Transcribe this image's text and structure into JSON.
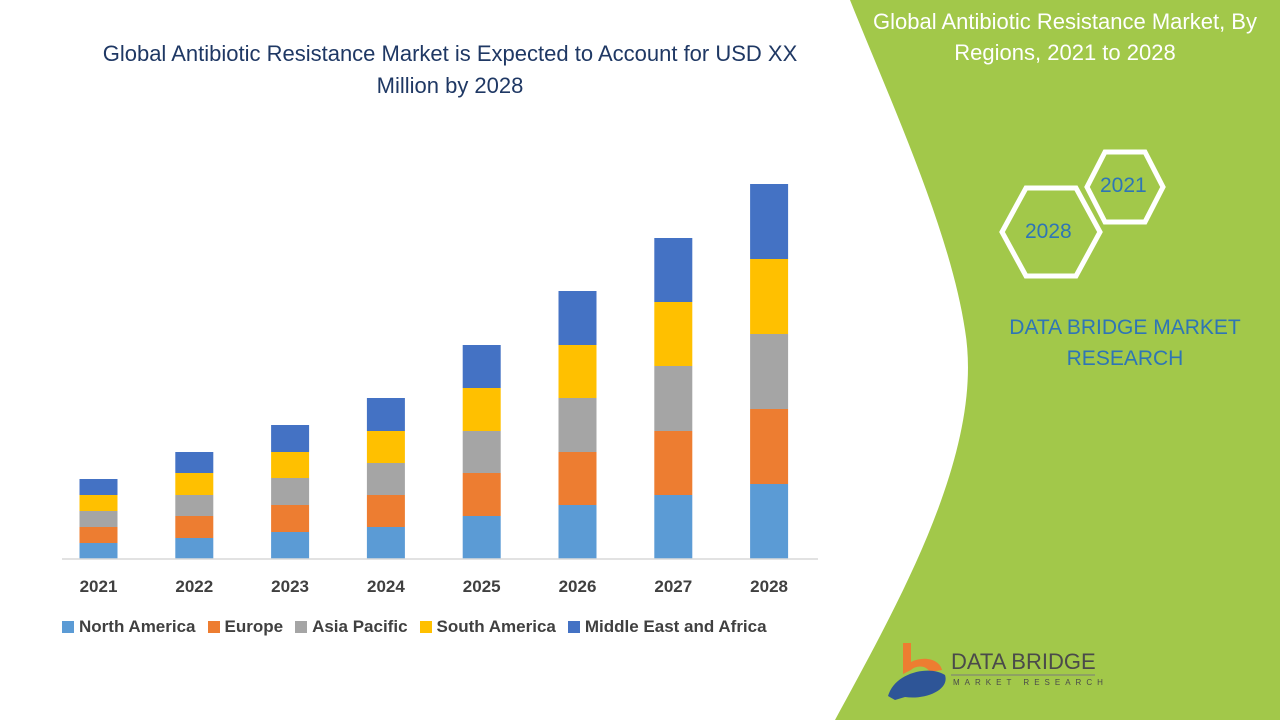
{
  "title": "Global Antibiotic Resistance Market is Expected to Account for USD XX Million by 2028",
  "side_panel": {
    "title": "Global Antibiotic Resistance Market, By Regions, 2021 to 2028",
    "hex_labels": [
      "2021",
      "2028"
    ],
    "brand": "DATA BRIDGE MARKET RESEARCH",
    "logo_text": "DATA BRIDGE",
    "logo_sub": "MARKET RESEARCH",
    "panel_color": "#a2c84a"
  },
  "chart_data": {
    "type": "bar",
    "stacked": true,
    "categories": [
      "2021",
      "2022",
      "2023",
      "2024",
      "2025",
      "2026",
      "2027",
      "2028"
    ],
    "series": [
      {
        "name": "North America",
        "color": "#5b9bd5",
        "values": [
          16,
          21,
          27,
          32,
          43,
          54,
          64,
          75
        ]
      },
      {
        "name": "Europe",
        "color": "#ed7d31",
        "values": [
          16,
          22,
          27,
          32,
          43,
          53,
          64,
          75
        ]
      },
      {
        "name": "Asia Pacific",
        "color": "#a5a5a5",
        "values": [
          16,
          21,
          27,
          32,
          42,
          54,
          65,
          75
        ]
      },
      {
        "name": "South America",
        "color": "#ffc000",
        "values": [
          16,
          22,
          26,
          32,
          43,
          53,
          64,
          75
        ]
      },
      {
        "name": "Middle East and Africa",
        "color": "#4472c4",
        "values": [
          16,
          21,
          27,
          33,
          43,
          54,
          64,
          75
        ]
      }
    ],
    "ylim": [
      0,
      375
    ],
    "y_axis_visible": false,
    "grid": false,
    "legend": "bottom"
  }
}
